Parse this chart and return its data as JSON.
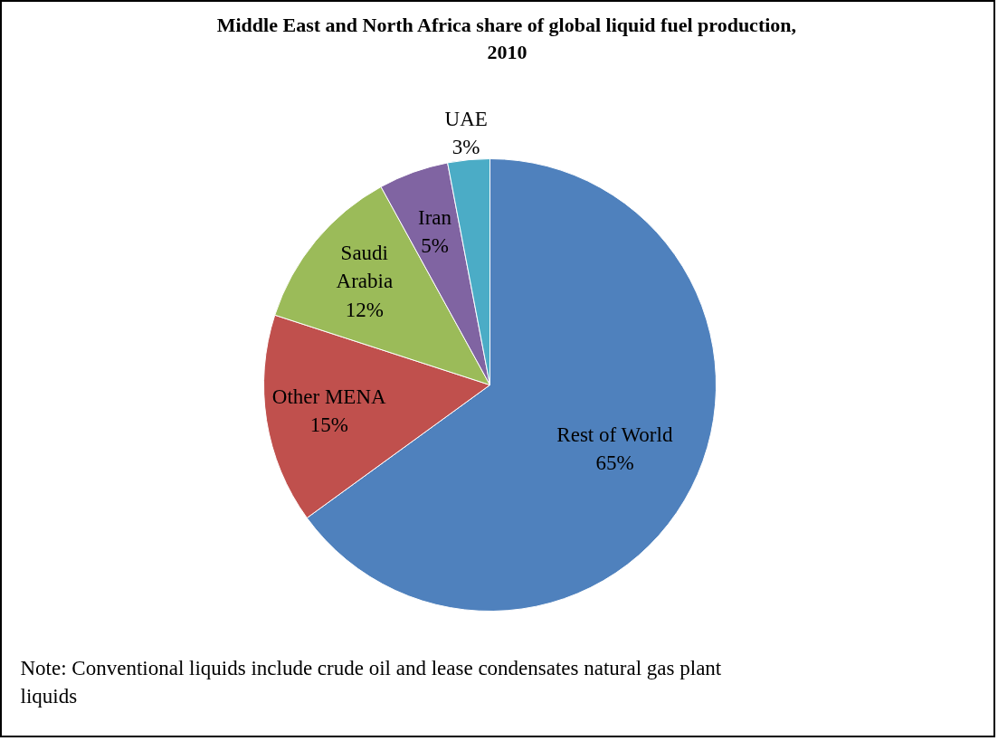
{
  "chart_data": {
    "type": "pie",
    "title": "Middle East and North Africa share of global liquid fuel production, 2010",
    "categories": [
      "Rest of World",
      "Other MENA",
      "Saudi Arabia",
      "Iran",
      "UAE"
    ],
    "values": [
      65,
      15,
      12,
      5,
      3
    ],
    "colors": [
      "#4f81bd",
      "#c0504d",
      "#9bbb59",
      "#8064a2",
      "#4bacc6"
    ],
    "value_labels": [
      "65%",
      "15%",
      "12%",
      "5%",
      "3%"
    ],
    "annotations": [
      "Note: Conventional liquids include crude oil and lease condensates natural gas plant liquids"
    ]
  }
}
